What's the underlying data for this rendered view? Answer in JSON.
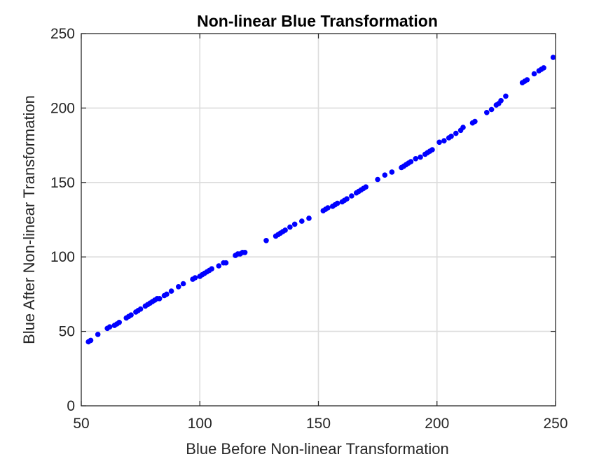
{
  "chart_data": {
    "type": "scatter",
    "title": "Non-linear Blue Transformation",
    "xlabel": "Blue Before Non-linear Transformation",
    "ylabel": "Blue After Non-linear Transformation",
    "xlim": [
      50,
      250
    ],
    "ylim": [
      0,
      250
    ],
    "xticks": [
      "50",
      "100",
      "150",
      "200",
      "250"
    ],
    "yticks": [
      "0",
      "50",
      "100",
      "150",
      "200",
      "250"
    ],
    "grid": true,
    "marker_color": "#0000ff",
    "series": [
      {
        "x": [
          53,
          54,
          57,
          61,
          62,
          64,
          65,
          66,
          69,
          70,
          71,
          73,
          74,
          75,
          77,
          78,
          79,
          80,
          81,
          82,
          83,
          85,
          86,
          88,
          91,
          93,
          97,
          98,
          100,
          101,
          102,
          103,
          104,
          105,
          108,
          110,
          111,
          115,
          116,
          117,
          118,
          119,
          128,
          132,
          133,
          134,
          135,
          136,
          138,
          140,
          143,
          146,
          152,
          153,
          154,
          156,
          157,
          158,
          160,
          161,
          162,
          164,
          166,
          167,
          168,
          169,
          170,
          175,
          178,
          181,
          185,
          186,
          187,
          188,
          189,
          191,
          193,
          195,
          196,
          197,
          198,
          201,
          203,
          205,
          206,
          208,
          210,
          211,
          215,
          216,
          221,
          223,
          225,
          226,
          227,
          229,
          236,
          237,
          238,
          241,
          243,
          244,
          245,
          249
        ],
        "y": [
          43,
          44,
          48,
          52,
          53,
          54,
          55,
          56,
          59,
          60,
          61,
          63,
          64,
          65,
          67,
          68,
          69,
          70,
          71,
          72,
          72,
          74,
          75,
          77,
          80,
          82,
          85,
          86,
          87,
          88,
          89,
          90,
          91,
          92,
          94,
          96,
          96,
          101,
          102,
          102,
          103,
          103,
          111,
          114,
          115,
          116,
          117,
          118,
          120,
          122,
          124,
          126,
          131,
          132,
          133,
          134,
          135,
          136,
          137,
          138,
          139,
          141,
          143,
          144,
          145,
          146,
          147,
          152,
          155,
          157,
          160,
          161,
          162,
          163,
          164,
          166,
          167,
          169,
          170,
          171,
          172,
          177,
          178,
          180,
          181,
          183,
          185,
          187,
          190,
          191,
          197,
          199,
          202,
          203,
          205,
          208,
          217,
          218,
          219,
          223,
          225,
          226,
          227,
          234
        ]
      }
    ]
  }
}
